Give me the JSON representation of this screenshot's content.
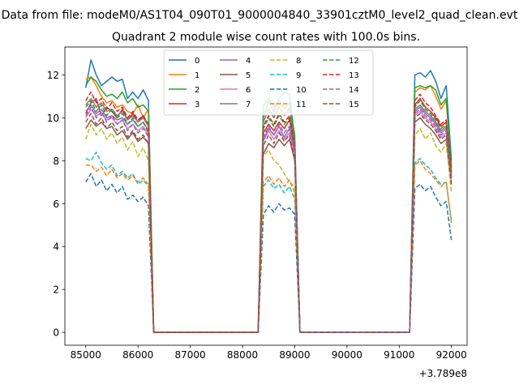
{
  "suptitle": "Data from file: modeM0/AS1T04_090T01_9000004840_33901cztM0_level2_quad_clean.evt",
  "chart_data": {
    "type": "line",
    "title": "Quadrant 2 module wise count rates with 100.0s bins.",
    "xlabel": "",
    "ylabel": "",
    "x_offset_label": "+3.789e8",
    "xlim": [
      84600,
      92300
    ],
    "ylim": [
      -0.6,
      13.3
    ],
    "xticks": [
      85000,
      86000,
      87000,
      88000,
      89000,
      90000,
      91000,
      92000
    ],
    "yticks": [
      0,
      2,
      4,
      6,
      8,
      10,
      12
    ],
    "grid": false,
    "legend_location": "top-center",
    "x": [
      85000,
      85100,
      85200,
      85300,
      85400,
      85500,
      85600,
      85700,
      85800,
      85900,
      86000,
      86100,
      86200,
      86300,
      86400,
      86500,
      86600,
      86700,
      86800,
      86900,
      87000,
      87100,
      87200,
      87300,
      87400,
      87500,
      87600,
      87700,
      87800,
      87900,
      88000,
      88100,
      88200,
      88300,
      88400,
      88500,
      88600,
      88700,
      88800,
      88900,
      89000,
      89100,
      89200,
      89300,
      89400,
      89500,
      89600,
      89700,
      89800,
      89900,
      90000,
      90100,
      90200,
      90300,
      90400,
      90500,
      90600,
      90700,
      90800,
      90900,
      91000,
      91100,
      91200,
      91300,
      91400,
      91500,
      91600,
      91700,
      91800,
      91900,
      92000
    ],
    "series": [
      {
        "name": "0",
        "color": "#1f77b4",
        "dash": "solid",
        "values": [
          11.4,
          12.7,
          12.0,
          11.5,
          11.7,
          11.9,
          11.7,
          11.8,
          10.9,
          11.2,
          10.9,
          11.3,
          10.8,
          0,
          0,
          0,
          0,
          0,
          0,
          0,
          0,
          0,
          0,
          0,
          0,
          0,
          0,
          0,
          0,
          0,
          0,
          0,
          0,
          0,
          10.0,
          10.8,
          10.3,
          10.9,
          11.2,
          11.1,
          9.0,
          0,
          0,
          0,
          0,
          0,
          0,
          0,
          0,
          0,
          0,
          0,
          0,
          0,
          0,
          0,
          0,
          0,
          0,
          0,
          0,
          0,
          0,
          12.0,
          12.1,
          11.9,
          12.2,
          11.7,
          10.9,
          11.5,
          8.0
        ]
      },
      {
        "name": "1",
        "color": "#ff7f0e",
        "dash": "solid",
        "values": [
          11.8,
          11.9,
          11.5,
          11.0,
          10.7,
          10.8,
          10.5,
          10.6,
          10.3,
          10.2,
          10.6,
          10.0,
          10.4,
          0,
          0,
          0,
          0,
          0,
          0,
          0,
          0,
          0,
          0,
          0,
          0,
          0,
          0,
          0,
          0,
          0,
          0,
          0,
          0,
          0,
          10.2,
          10.4,
          10.1,
          10.6,
          10.1,
          10.5,
          8.9,
          0,
          0,
          0,
          0,
          0,
          0,
          0,
          0,
          0,
          0,
          0,
          0,
          0,
          0,
          0,
          0,
          0,
          0,
          0,
          0,
          0,
          0,
          11.2,
          11.4,
          11.3,
          11.5,
          11.0,
          10.4,
          10.8,
          7.6
        ]
      },
      {
        "name": "2",
        "color": "#2ca02c",
        "dash": "solid",
        "values": [
          11.5,
          11.9,
          11.7,
          11.3,
          11.0,
          11.1,
          10.9,
          11.2,
          10.7,
          10.9,
          10.5,
          10.6,
          10.3,
          0,
          0,
          0,
          0,
          0,
          0,
          0,
          0,
          0,
          0,
          0,
          0,
          0,
          0,
          0,
          0,
          0,
          0,
          0,
          0,
          0,
          10.6,
          10.9,
          10.5,
          10.8,
          10.4,
          10.7,
          9.2,
          0,
          0,
          0,
          0,
          0,
          0,
          0,
          0,
          0,
          0,
          0,
          0,
          0,
          0,
          0,
          0,
          0,
          0,
          0,
          0,
          0,
          0,
          11.4,
          11.5,
          11.4,
          11.5,
          11.3,
          10.6,
          10.9,
          7.7
        ]
      },
      {
        "name": "3",
        "color": "#d62728",
        "dash": "solid",
        "values": [
          10.2,
          10.7,
          10.9,
          10.1,
          10.5,
          10.3,
          10.0,
          10.4,
          9.9,
          10.2,
          9.8,
          10.1,
          9.6,
          0,
          0,
          0,
          0,
          0,
          0,
          0,
          0,
          0,
          0,
          0,
          0,
          0,
          0,
          0,
          0,
          0,
          0,
          0,
          0,
          0,
          9.3,
          9.7,
          9.4,
          9.8,
          9.5,
          9.9,
          8.6,
          0,
          0,
          0,
          0,
          0,
          0,
          0,
          0,
          0,
          0,
          0,
          0,
          0,
          0,
          0,
          0,
          0,
          0,
          0,
          0,
          0,
          0,
          10.6,
          10.9,
          10.5,
          10.3,
          10.0,
          9.6,
          9.8,
          7.4
        ]
      },
      {
        "name": "4",
        "color": "#9467bd",
        "dash": "solid",
        "values": [
          10.3,
          10.6,
          10.2,
          10.4,
          10.0,
          10.1,
          9.9,
          10.0,
          9.7,
          9.9,
          9.6,
          9.8,
          9.4,
          0,
          0,
          0,
          0,
          0,
          0,
          0,
          0,
          0,
          0,
          0,
          0,
          0,
          0,
          0,
          0,
          0,
          0,
          0,
          0,
          0,
          9.0,
          9.5,
          9.2,
          9.6,
          9.1,
          9.5,
          8.5,
          0,
          0,
          0,
          0,
          0,
          0,
          0,
          0,
          0,
          0,
          0,
          0,
          0,
          0,
          0,
          0,
          0,
          0,
          0,
          0,
          0,
          0,
          10.3,
          10.5,
          10.2,
          10.0,
          9.7,
          9.3,
          9.5,
          7.2
        ]
      },
      {
        "name": "5",
        "color": "#8c564b",
        "dash": "solid",
        "values": [
          9.5,
          9.9,
          9.6,
          9.8,
          9.5,
          9.6,
          9.2,
          9.4,
          9.0,
          9.3,
          8.9,
          9.1,
          8.8,
          0,
          0,
          0,
          0,
          0,
          0,
          0,
          0,
          0,
          0,
          0,
          0,
          0,
          0,
          0,
          0,
          0,
          0,
          0,
          0,
          0,
          8.3,
          8.8,
          8.6,
          9.0,
          8.7,
          9.0,
          8.0,
          0,
          0,
          0,
          0,
          0,
          0,
          0,
          0,
          0,
          0,
          0,
          0,
          0,
          0,
          0,
          0,
          0,
          0,
          0,
          0,
          0,
          0,
          9.8,
          10.0,
          9.7,
          9.5,
          9.2,
          8.8,
          9.0,
          6.9
        ]
      },
      {
        "name": "6",
        "color": "#e377c2",
        "dash": "solid",
        "values": [
          10.0,
          10.4,
          10.1,
          10.2,
          9.9,
          10.0,
          9.7,
          9.9,
          9.5,
          9.7,
          9.4,
          9.6,
          9.2,
          0,
          0,
          0,
          0,
          0,
          0,
          0,
          0,
          0,
          0,
          0,
          0,
          0,
          0,
          0,
          0,
          0,
          0,
          0,
          0,
          0,
          8.9,
          9.4,
          9.0,
          9.4,
          9.0,
          9.3,
          8.3,
          0,
          0,
          0,
          0,
          0,
          0,
          0,
          0,
          0,
          0,
          0,
          0,
          0,
          0,
          0,
          0,
          0,
          0,
          0,
          0,
          0,
          0,
          10.1,
          10.3,
          10.0,
          9.8,
          9.5,
          9.1,
          9.3,
          7.0
        ]
      },
      {
        "name": "7",
        "color": "#7f7f7f",
        "dash": "solid",
        "values": [
          10.6,
          10.9,
          10.5,
          10.7,
          10.3,
          10.4,
          10.1,
          10.3,
          9.9,
          10.1,
          9.8,
          10.0,
          9.6,
          0,
          0,
          0,
          0,
          0,
          0,
          0,
          0,
          0,
          0,
          0,
          0,
          0,
          0,
          0,
          0,
          0,
          0,
          0,
          0,
          0,
          9.8,
          10.4,
          10.0,
          10.5,
          10.1,
          10.4,
          8.9,
          0,
          0,
          0,
          0,
          0,
          0,
          0,
          0,
          0,
          0,
          0,
          0,
          0,
          0,
          0,
          0,
          0,
          0,
          0,
          0,
          0,
          0,
          10.4,
          10.6,
          10.3,
          10.1,
          9.8,
          9.4,
          9.6,
          7.3
        ]
      },
      {
        "name": "8",
        "color": "#bcbd22",
        "dash": "dashed",
        "values": [
          9.0,
          9.7,
          9.2,
          9.5,
          9.0,
          9.3,
          8.8,
          9.1,
          8.5,
          8.9,
          8.2,
          8.6,
          8.0,
          0,
          0,
          0,
          0,
          0,
          0,
          0,
          0,
          0,
          0,
          0,
          0,
          0,
          0,
          0,
          0,
          0,
          0,
          0,
          0,
          0,
          8.2,
          8.5,
          8.0,
          7.8,
          7.4,
          7.0,
          6.8,
          0,
          0,
          0,
          0,
          0,
          0,
          0,
          0,
          0,
          0,
          0,
          0,
          0,
          0,
          0,
          0,
          0,
          0,
          0,
          0,
          0,
          0,
          9.2,
          9.5,
          9.0,
          9.3,
          8.7,
          8.4,
          8.8,
          6.5
        ]
      },
      {
        "name": "9",
        "color": "#17becf",
        "dash": "dashed",
        "values": [
          8.1,
          8.0,
          8.4,
          7.9,
          7.6,
          7.8,
          7.3,
          7.5,
          7.2,
          7.4,
          6.9,
          7.1,
          6.8,
          0,
          0,
          0,
          0,
          0,
          0,
          0,
          0,
          0,
          0,
          0,
          0,
          0,
          0,
          0,
          0,
          0,
          0,
          0,
          0,
          0,
          6.8,
          7.1,
          6.7,
          6.9,
          6.5,
          6.8,
          6.2,
          0,
          0,
          0,
          0,
          0,
          0,
          0,
          0,
          0,
          0,
          0,
          0,
          0,
          0,
          0,
          0,
          0,
          0,
          0,
          0,
          0,
          0,
          7.9,
          8.1,
          7.8,
          7.6,
          7.2,
          6.9,
          7.0,
          5.2
        ]
      },
      {
        "name": "10",
        "color": "#1f77b4",
        "dash": "dashed",
        "values": [
          7.0,
          7.4,
          6.8,
          7.1,
          6.6,
          6.9,
          6.5,
          6.8,
          6.2,
          6.4,
          6.1,
          6.3,
          5.9,
          0,
          0,
          0,
          0,
          0,
          0,
          0,
          0,
          0,
          0,
          0,
          0,
          0,
          0,
          0,
          0,
          0,
          0,
          0,
          0,
          0,
          5.5,
          5.9,
          5.6,
          6.0,
          5.7,
          5.8,
          5.5,
          0,
          0,
          0,
          0,
          0,
          0,
          0,
          0,
          0,
          0,
          0,
          0,
          0,
          0,
          0,
          0,
          0,
          0,
          0,
          0,
          0,
          0,
          6.7,
          6.9,
          6.6,
          6.8,
          6.3,
          5.9,
          6.1,
          4.3
        ]
      },
      {
        "name": "11",
        "color": "#ff7f0e",
        "dash": "dashed",
        "values": [
          7.8,
          7.8,
          7.5,
          7.7,
          7.3,
          7.6,
          7.2,
          7.4,
          7.1,
          7.3,
          7.0,
          7.2,
          6.9,
          0,
          0,
          0,
          0,
          0,
          0,
          0,
          0,
          0,
          0,
          0,
          0,
          0,
          0,
          0,
          0,
          0,
          0,
          0,
          0,
          0,
          7.0,
          7.3,
          6.9,
          7.2,
          6.8,
          7.1,
          6.5,
          0,
          0,
          0,
          0,
          0,
          0,
          0,
          0,
          0,
          0,
          0,
          0,
          0,
          0,
          0,
          0,
          0,
          0,
          0,
          0,
          0,
          0,
          7.8,
          8.0,
          7.6,
          7.4,
          7.1,
          6.8,
          7.0,
          5.1
        ]
      },
      {
        "name": "12",
        "color": "#2ca02c",
        "dash": "dashed",
        "values": [
          10.5,
          10.8,
          10.3,
          10.6,
          10.1,
          10.4,
          10.0,
          10.2,
          9.7,
          10.0,
          9.6,
          9.8,
          9.3,
          0,
          0,
          0,
          0,
          0,
          0,
          0,
          0,
          0,
          0,
          0,
          0,
          0,
          0,
          0,
          0,
          0,
          0,
          0,
          0,
          0,
          9.5,
          10.0,
          9.6,
          10.1,
          9.7,
          10.0,
          8.7,
          0,
          0,
          0,
          0,
          0,
          0,
          0,
          0,
          0,
          0,
          0,
          0,
          0,
          0,
          0,
          0,
          0,
          0,
          0,
          0,
          0,
          0,
          10.5,
          10.8,
          10.4,
          10.2,
          9.9,
          9.5,
          9.7,
          7.4
        ]
      },
      {
        "name": "13",
        "color": "#d62728",
        "dash": "dashed",
        "values": [
          10.8,
          11.2,
          10.7,
          10.9,
          10.4,
          10.7,
          10.3,
          10.5,
          10.0,
          10.3,
          9.9,
          10.1,
          9.7,
          0,
          0,
          0,
          0,
          0,
          0,
          0,
          0,
          0,
          0,
          0,
          0,
          0,
          0,
          0,
          0,
          0,
          0,
          0,
          0,
          0,
          9.6,
          10.1,
          9.7,
          10.2,
          9.8,
          10.1,
          8.8,
          0,
          0,
          0,
          0,
          0,
          0,
          0,
          0,
          0,
          0,
          0,
          0,
          0,
          0,
          0,
          0,
          0,
          0,
          0,
          0,
          0,
          0,
          10.8,
          11.1,
          10.7,
          10.5,
          10.1,
          9.7,
          9.9,
          7.5
        ]
      },
      {
        "name": "14",
        "color": "#9467bd",
        "dash": "dashed",
        "values": [
          10.1,
          10.5,
          10.0,
          10.3,
          9.8,
          10.1,
          9.7,
          9.9,
          9.4,
          9.7,
          9.3,
          9.5,
          9.1,
          0,
          0,
          0,
          0,
          0,
          0,
          0,
          0,
          0,
          0,
          0,
          0,
          0,
          0,
          0,
          0,
          0,
          0,
          0,
          0,
          0,
          9.1,
          9.6,
          9.2,
          9.7,
          9.3,
          9.6,
          8.4,
          0,
          0,
          0,
          0,
          0,
          0,
          0,
          0,
          0,
          0,
          0,
          0,
          0,
          0,
          0,
          0,
          0,
          0,
          0,
          0,
          0,
          0,
          10.2,
          10.4,
          10.1,
          9.9,
          9.6,
          9.2,
          9.4,
          7.1
        ]
      },
      {
        "name": "15",
        "color": "#8c564b",
        "dash": "dashed",
        "values": [
          9.8,
          10.2,
          9.7,
          10.0,
          9.5,
          9.8,
          9.4,
          9.6,
          9.1,
          9.4,
          9.0,
          9.2,
          8.8,
          0,
          0,
          0,
          0,
          0,
          0,
          0,
          0,
          0,
          0,
          0,
          0,
          0,
          0,
          0,
          0,
          0,
          0,
          0,
          0,
          0,
          8.7,
          9.2,
          8.8,
          9.3,
          8.9,
          9.2,
          8.1,
          0,
          0,
          0,
          0,
          0,
          0,
          0,
          0,
          0,
          0,
          0,
          0,
          0,
          0,
          0,
          0,
          0,
          0,
          0,
          0,
          0,
          0,
          10.0,
          10.2,
          9.9,
          9.7,
          9.4,
          9.0,
          9.2,
          6.9
        ]
      }
    ]
  }
}
